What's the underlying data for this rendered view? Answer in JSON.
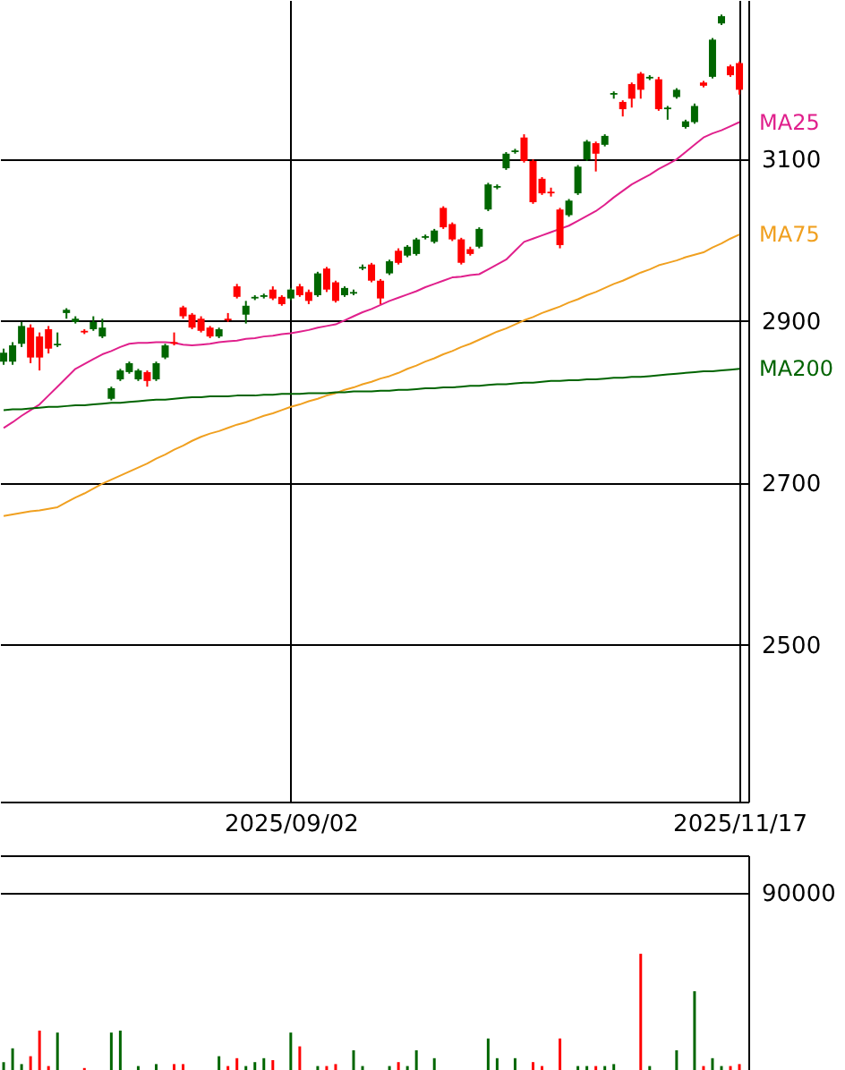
{
  "chart_data": [
    {
      "type": "candlestick",
      "categories": [
        null,
        null,
        null,
        null,
        null,
        null,
        null,
        null,
        null,
        null,
        null,
        null,
        null,
        null,
        null,
        null,
        null,
        null,
        null,
        null,
        null,
        null,
        null,
        null,
        null,
        null,
        null,
        null,
        null,
        null,
        null,
        null,
        "2025/09/02",
        null,
        null,
        null,
        null,
        null,
        null,
        null,
        null,
        null,
        null,
        null,
        null,
        null,
        null,
        null,
        null,
        null,
        null,
        null,
        null,
        null,
        null,
        null,
        null,
        null,
        null,
        null,
        null,
        null,
        null,
        null,
        null,
        null,
        null,
        null,
        null,
        null,
        null,
        null,
        null,
        null,
        null,
        null,
        null,
        null,
        null,
        null,
        null,
        null,
        "2025/11/17"
      ],
      "ohlc": [
        [
          2850,
          2866,
          2846,
          2861
        ],
        [
          2850,
          2874,
          2846,
          2870
        ],
        [
          2872,
          2899,
          2868,
          2894
        ],
        [
          2892,
          2896,
          2848,
          2855
        ],
        [
          2881,
          2886,
          2839,
          2855
        ],
        [
          2890,
          2894,
          2860,
          2866
        ],
        [
          2870,
          2886,
          2868,
          2872
        ],
        [
          2910,
          2916,
          2903,
          2914
        ],
        [
          2899,
          2906,
          2897,
          2903
        ],
        [
          2888,
          2890,
          2884,
          2886
        ],
        [
          2890,
          2906,
          2888,
          2899
        ],
        [
          2881,
          2903,
          2879,
          2892
        ],
        [
          2804,
          2819,
          2802,
          2817
        ],
        [
          2828,
          2841,
          2826,
          2839
        ],
        [
          2837,
          2850,
          2835,
          2848
        ],
        [
          2828,
          2841,
          2826,
          2839
        ],
        [
          2837,
          2839,
          2819,
          2826
        ],
        [
          2828,
          2850,
          2826,
          2848
        ],
        [
          2855,
          2872,
          2853,
          2870
        ],
        [
          2874,
          2886,
          2870,
          2872
        ],
        [
          2917,
          2919,
          2903,
          2906
        ],
        [
          2908,
          2910,
          2890,
          2892
        ],
        [
          2903,
          2906,
          2886,
          2888
        ],
        [
          2892,
          2894,
          2879,
          2881
        ],
        [
          2881,
          2892,
          2879,
          2890
        ],
        [
          2903,
          2910,
          2899,
          2901
        ],
        [
          2943,
          2946,
          2928,
          2930
        ],
        [
          2908,
          2925,
          2897,
          2919
        ],
        [
          2928,
          2932,
          2926,
          2930
        ],
        [
          2930,
          2934,
          2928,
          2932
        ],
        [
          2939,
          2943,
          2926,
          2928
        ],
        [
          2930,
          2932,
          2919,
          2921
        ],
        [
          2928,
          2941,
          2926,
          2939
        ],
        [
          2943,
          2946,
          2930,
          2932
        ],
        [
          2936,
          2939,
          2921,
          2925
        ],
        [
          2932,
          2961,
          2930,
          2959
        ],
        [
          2965,
          2967,
          2936,
          2939
        ],
        [
          2948,
          2950,
          2923,
          2925
        ],
        [
          2932,
          2943,
          2930,
          2941
        ],
        [
          2934,
          2939,
          2932,
          2936
        ],
        [
          2965,
          2970,
          2963,
          2967
        ],
        [
          2970,
          2972,
          2948,
          2950
        ],
        [
          2950,
          2952,
          2921,
          2928
        ],
        [
          2959,
          2976,
          2957,
          2974
        ],
        [
          2987,
          2990,
          2970,
          2972
        ],
        [
          2981,
          2994,
          2979,
          2992
        ],
        [
          2983,
          3003,
          2981,
          3001
        ],
        [
          3003,
          3007,
          3001,
          3005
        ],
        [
          2998,
          3014,
          2996,
          3012
        ],
        [
          3040,
          3042,
          3014,
          3016
        ],
        [
          3020,
          3022,
          2999,
          3001
        ],
        [
          3001,
          3003,
          2970,
          2972
        ],
        [
          2989,
          2992,
          2981,
          2983
        ],
        [
          2992,
          3016,
          2990,
          3014
        ],
        [
          3038,
          3071,
          3036,
          3069
        ],
        [
          3065,
          3069,
          3063,
          3067
        ],
        [
          3089,
          3109,
          3087,
          3107
        ],
        [
          3109,
          3113,
          3107,
          3111
        ],
        [
          3127,
          3131,
          3096,
          3098
        ],
        [
          3098,
          3100,
          3045,
          3047
        ],
        [
          3076,
          3078,
          3056,
          3058
        ],
        [
          3060,
          3065,
          3054,
          3058
        ],
        [
          3038,
          3040,
          2990,
          2994
        ],
        [
          3031,
          3051,
          3029,
          3049
        ],
        [
          3058,
          3093,
          3056,
          3091
        ],
        [
          3100,
          3124,
          3098,
          3122
        ],
        [
          3120,
          3122,
          3085,
          3107
        ],
        [
          3118,
          3131,
          3116,
          3129
        ],
        [
          3180,
          3184,
          3175,
          3182
        ],
        [
          3171,
          3173,
          3153,
          3162
        ],
        [
          3193,
          3195,
          3164,
          3175
        ],
        [
          3206,
          3208,
          3175,
          3186
        ],
        [
          3200,
          3204,
          3198,
          3202
        ],
        [
          3199,
          3202,
          3160,
          3162
        ],
        [
          3162,
          3166,
          3149,
          3164
        ],
        [
          3177,
          3188,
          3175,
          3186
        ],
        [
          3140,
          3149,
          3138,
          3147
        ],
        [
          3146,
          3169,
          3144,
          3166
        ],
        [
          3195,
          3197,
          3189,
          3191
        ],
        [
          3202,
          3250,
          3200,
          3248
        ],
        [
          3268,
          3279,
          3266,
          3277
        ],
        [
          3215,
          3217,
          3202,
          3204
        ],
        [
          3219,
          3221,
          3180,
          3186
        ]
      ],
      "colors": [
        "#006600",
        "#006600",
        "#006600",
        "#ff0000",
        "#ff0000",
        "#ff0000",
        "#006600",
        "#006600",
        "#006600",
        "#ff0000",
        "#006600",
        "#006600",
        "#006600",
        "#006600",
        "#006600",
        "#006600",
        "#ff0000",
        "#006600",
        "#006600",
        "#ff0000",
        "#ff0000",
        "#ff0000",
        "#ff0000",
        "#ff0000",
        "#006600",
        "#ff0000",
        "#ff0000",
        "#006600",
        "#006600",
        "#006600",
        "#ff0000",
        "#ff0000",
        "#006600",
        "#ff0000",
        "#ff0000",
        "#006600",
        "#ff0000",
        "#ff0000",
        "#006600",
        "#006600",
        "#006600",
        "#ff0000",
        "#ff0000",
        "#006600",
        "#ff0000",
        "#006600",
        "#006600",
        "#006600",
        "#006600",
        "#ff0000",
        "#ff0000",
        "#ff0000",
        "#ff0000",
        "#006600",
        "#006600",
        "#006600",
        "#006600",
        "#006600",
        "#ff0000",
        "#ff0000",
        "#ff0000",
        "#ff0000",
        "#ff0000",
        "#006600",
        "#006600",
        "#006600",
        "#ff0000",
        "#006600",
        "#006600",
        "#ff0000",
        "#ff0000",
        "#ff0000",
        "#006600",
        "#ff0000",
        "#006600",
        "#006600",
        "#006600",
        "#006600",
        "#ff0000",
        "#006600",
        "#006600",
        "#ff0000",
        "#ff0000"
      ],
      "series": [
        {
          "name": "MA25",
          "type": "line",
          "color": "#e0208c",
          "values": [
            2768,
            2775,
            2783,
            2790,
            2797,
            2808,
            2819,
            2830,
            2841,
            2847,
            2853,
            2859,
            2863,
            2868,
            2872,
            2873,
            2873,
            2874,
            2874,
            2873,
            2871,
            2870,
            2871,
            2872,
            2874,
            2875,
            2876,
            2878,
            2879,
            2881,
            2882,
            2884,
            2885,
            2887,
            2889,
            2892,
            2894,
            2896,
            2901,
            2906,
            2911,
            2915,
            2920,
            2925,
            2929,
            2933,
            2937,
            2942,
            2946,
            2950,
            2954,
            2955,
            2957,
            2958,
            2964,
            2970,
            2976,
            2987,
            2998,
            3002,
            3006,
            3010,
            3014,
            3018,
            3024,
            3030,
            3036,
            3044,
            3053,
            3061,
            3069,
            3075,
            3081,
            3088,
            3094,
            3100,
            3109,
            3118,
            3127,
            3132,
            3136,
            3141,
            3146
          ]
        },
        {
          "name": "MA75",
          "type": "line",
          "color": "#f0a020",
          "values": [
            2659,
            2661,
            2663,
            2665,
            2666,
            2668,
            2670,
            2676,
            2682,
            2687,
            2693,
            2699,
            2704,
            2709,
            2714,
            2719,
            2724,
            2730,
            2735,
            2741,
            2746,
            2752,
            2757,
            2761,
            2764,
            2768,
            2772,
            2775,
            2779,
            2783,
            2786,
            2790,
            2794,
            2797,
            2801,
            2804,
            2808,
            2811,
            2815,
            2818,
            2822,
            2825,
            2829,
            2832,
            2836,
            2841,
            2845,
            2850,
            2854,
            2859,
            2863,
            2868,
            2872,
            2877,
            2882,
            2887,
            2891,
            2896,
            2901,
            2905,
            2910,
            2914,
            2918,
            2923,
            2927,
            2932,
            2936,
            2941,
            2946,
            2950,
            2955,
            2960,
            2964,
            2969,
            2972,
            2975,
            2979,
            2982,
            2985,
            2991,
            2996,
            3002,
            3007
          ]
        },
        {
          "name": "MA200",
          "type": "line",
          "color": "#006400",
          "values": [
            2790,
            2791,
            2791,
            2792,
            2793,
            2794,
            2794,
            2795,
            2796,
            2796,
            2797,
            2798,
            2799,
            2799,
            2800,
            2801,
            2802,
            2803,
            2803,
            2804,
            2805,
            2806,
            2806,
            2807,
            2807,
            2807,
            2808,
            2808,
            2808,
            2809,
            2809,
            2810,
            2810,
            2810,
            2811,
            2811,
            2811,
            2812,
            2812,
            2813,
            2813,
            2813,
            2814,
            2814,
            2815,
            2815,
            2816,
            2817,
            2817,
            2818,
            2818,
            2819,
            2820,
            2820,
            2821,
            2822,
            2822,
            2823,
            2824,
            2824,
            2825,
            2826,
            2826,
            2827,
            2827,
            2828,
            2828,
            2829,
            2830,
            2830,
            2831,
            2831,
            2832,
            2833,
            2834,
            2835,
            2836,
            2837,
            2838,
            2838,
            2839,
            2840,
            2841
          ]
        }
      ],
      "ylim": [
        2306,
        3297
      ],
      "yticks": [
        2500,
        2700,
        2900,
        3100
      ],
      "grid": true
    },
    {
      "type": "bar",
      "categories": [
        null,
        null,
        null,
        null,
        null,
        null,
        null,
        null,
        null,
        null,
        null,
        null,
        null,
        null,
        null,
        null,
        null,
        null,
        null,
        null,
        null,
        null,
        null,
        null,
        null,
        null,
        null,
        null,
        null,
        null,
        null,
        null,
        null,
        null,
        null,
        null,
        null,
        null,
        null,
        null,
        null,
        null,
        null,
        null,
        null,
        null,
        null,
        null,
        null,
        null,
        null,
        null,
        null,
        null,
        null,
        null,
        null,
        null,
        null,
        null,
        null,
        null,
        null,
        null,
        null,
        null,
        null,
        null,
        null,
        null,
        null,
        null,
        null,
        null,
        null,
        null,
        null,
        null,
        null,
        null,
        null,
        null,
        null
      ],
      "values": [
        4000,
        11000,
        3000,
        7000,
        20000,
        2000,
        19000,
        null,
        null,
        1000,
        null,
        null,
        19000,
        20000,
        null,
        2000,
        null,
        3000,
        null,
        3000,
        3000,
        null,
        null,
        null,
        7000,
        2000,
        6000,
        2000,
        4000,
        6000,
        5000,
        null,
        19000,
        12000,
        null,
        2000,
        2000,
        3000,
        null,
        10000,
        2000,
        null,
        null,
        2000,
        4000,
        2000,
        10000,
        null,
        6000,
        null,
        null,
        null,
        null,
        null,
        16000,
        6000,
        null,
        6000,
        null,
        4000,
        2000,
        null,
        16000,
        null,
        2000,
        2000,
        2000,
        2000,
        3000,
        null,
        null,
        59000,
        2000,
        null,
        null,
        10000,
        null,
        40000,
        2000,
        6000,
        2000,
        2000,
        3000
      ],
      "colors": [
        "#006600",
        "#006600",
        "#006600",
        "#ff0000",
        "#ff0000",
        "#ff0000",
        "#006600",
        null,
        null,
        "#ff0000",
        null,
        null,
        "#006600",
        "#006600",
        null,
        "#006600",
        null,
        "#006600",
        null,
        "#ff0000",
        "#ff0000",
        null,
        null,
        null,
        "#006600",
        "#ff0000",
        "#ff0000",
        "#006600",
        "#006600",
        "#006600",
        "#ff0000",
        null,
        "#006600",
        "#ff0000",
        null,
        "#006600",
        "#ff0000",
        "#ff0000",
        null,
        "#006600",
        "#006600",
        null,
        null,
        "#006600",
        "#ff0000",
        "#006600",
        "#006600",
        null,
        "#006600",
        null,
        null,
        null,
        null,
        null,
        "#006600",
        "#006600",
        null,
        "#006600",
        null,
        "#ff0000",
        "#ff0000",
        null,
        "#ff0000",
        null,
        "#006600",
        "#006600",
        "#ff0000",
        "#006600",
        "#006600",
        null,
        null,
        "#ff0000",
        "#006600",
        null,
        null,
        "#006600",
        null,
        "#006600",
        "#ff0000",
        "#006600",
        "#006600",
        "#ff0000",
        "#ff0000"
      ],
      "ylim": [
        0,
        109000
      ],
      "yticks": [
        {
          "value": 0,
          "label": null
        },
        90000
      ],
      "tick_labels": "y",
      "grid": "y"
    }
  ]
}
